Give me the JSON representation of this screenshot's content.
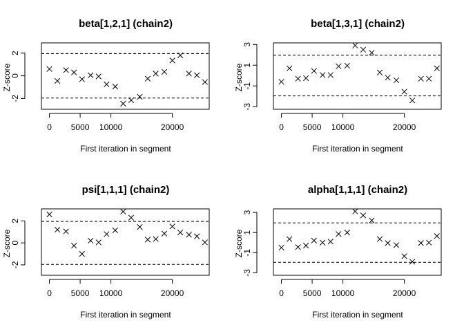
{
  "chart_data": [
    {
      "type": "scatter",
      "title": "beta[1,2,1] (chain2)",
      "xlabel": "First iteration in segment",
      "ylabel": "Z-score",
      "xlim": [
        -1300,
        26000
      ],
      "ylim": [
        -2.95,
        2.9
      ],
      "xticks": [
        0,
        5000,
        10000,
        20000
      ],
      "xtick_labels": [
        "0",
        "5000",
        "10000",
        "20000"
      ],
      "yticks": [
        -2,
        0,
        2
      ],
      "ytick_labels": [
        "-2",
        "0",
        "2"
      ],
      "reference_lines": [
        -1.96,
        1.96
      ],
      "marker": "x",
      "x": [
        0,
        1300,
        2700,
        4000,
        5300,
        6700,
        8000,
        9300,
        10700,
        12000,
        13300,
        14700,
        16000,
        17300,
        18700,
        20000,
        21300,
        22700,
        24000,
        25300
      ],
      "y": [
        0.6,
        -0.45,
        0.5,
        0.3,
        -0.3,
        0.05,
        -0.05,
        -0.75,
        -0.95,
        -2.45,
        -2.15,
        -1.85,
        -0.25,
        0.2,
        0.35,
        1.35,
        1.8,
        0.2,
        0.05,
        -0.55
      ]
    },
    {
      "type": "scatter",
      "title": "beta[1,3,1] (chain2)",
      "xlabel": "First iteration in segment",
      "ylabel": "Z-score",
      "xlim": [
        -1300,
        26000
      ],
      "ylim": [
        -3.25,
        3.15
      ],
      "xticks": [
        0,
        5000,
        10000,
        20000
      ],
      "xtick_labels": [
        "0",
        "5000",
        "10000",
        "20000"
      ],
      "yticks": [
        -3,
        -1,
        1,
        3
      ],
      "ytick_labels": [
        "-3",
        "-1",
        "1",
        "3"
      ],
      "reference_lines": [
        -1.96,
        1.96
      ],
      "marker": "x",
      "x": [
        0,
        1300,
        2700,
        4000,
        5300,
        6700,
        8000,
        9300,
        10700,
        12000,
        13300,
        14700,
        16000,
        17300,
        18700,
        20000,
        21300,
        22700,
        24000,
        25300
      ],
      "y": [
        -0.6,
        0.7,
        -0.3,
        -0.25,
        0.45,
        0.05,
        0.05,
        0.9,
        0.95,
        2.9,
        2.5,
        2.2,
        0.3,
        -0.2,
        -0.45,
        -1.55,
        -2.4,
        -0.3,
        -0.3,
        0.7
      ]
    },
    {
      "type": "scatter",
      "title": "psi[1,1,1] (chain2)",
      "xlabel": "First iteration in segment",
      "ylabel": "Z-score",
      "xlim": [
        -1300,
        26000
      ],
      "ylim": [
        -2.95,
        3.1
      ],
      "xticks": [
        0,
        5000,
        10000,
        20000
      ],
      "xtick_labels": [
        "0",
        "5000",
        "10000",
        "20000"
      ],
      "yticks": [
        -2,
        0,
        2
      ],
      "ytick_labels": [
        "-2",
        "0",
        "2"
      ],
      "reference_lines": [
        -1.96,
        1.96
      ],
      "marker": "x",
      "x": [
        0,
        1300,
        2700,
        4000,
        5300,
        6700,
        8000,
        9300,
        10700,
        12000,
        13300,
        14700,
        16000,
        17300,
        18700,
        20000,
        21300,
        22700,
        24000,
        25300
      ],
      "y": [
        2.6,
        1.2,
        1.05,
        -0.25,
        -1.0,
        0.2,
        0.05,
        0.8,
        1.15,
        2.85,
        2.3,
        1.45,
        0.3,
        0.35,
        0.85,
        1.5,
        0.95,
        0.75,
        0.6,
        0.05
      ]
    },
    {
      "type": "scatter",
      "title": "alpha[1,1,1] (chain2)",
      "xlabel": "First iteration in segment",
      "ylabel": "Z-score",
      "xlim": [
        -1300,
        26000
      ],
      "ylim": [
        -3.25,
        3.35
      ],
      "xticks": [
        0,
        5000,
        10000,
        20000
      ],
      "xtick_labels": [
        "0",
        "5000",
        "10000",
        "20000"
      ],
      "yticks": [
        -3,
        -1,
        1,
        3
      ],
      "ytick_labels": [
        "-3",
        "-1",
        "1",
        "3"
      ],
      "reference_lines": [
        -1.96,
        1.96
      ],
      "marker": "x",
      "x": [
        0,
        1300,
        2700,
        4000,
        5300,
        6700,
        8000,
        9300,
        10700,
        12000,
        13300,
        14700,
        16000,
        17300,
        18700,
        20000,
        21300,
        22700,
        24000,
        25300
      ],
      "y": [
        -0.5,
        0.35,
        -0.45,
        -0.3,
        0.2,
        0.0,
        0.1,
        0.85,
        1.0,
        3.1,
        2.7,
        2.2,
        0.35,
        -0.05,
        -0.25,
        -1.35,
        -1.9,
        -0.05,
        0.0,
        0.65
      ]
    }
  ]
}
